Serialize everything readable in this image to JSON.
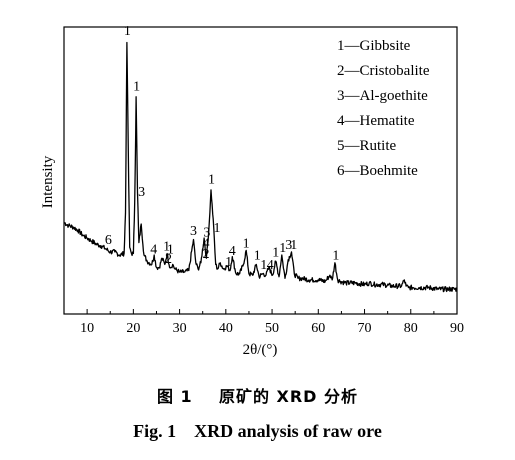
{
  "chart_data": {
    "type": "line",
    "xlabel": "2θ/(°)",
    "ylabel": "Intensity",
    "xlim": [
      5,
      90
    ],
    "x_ticks": [
      10,
      20,
      30,
      40,
      50,
      60,
      70,
      80,
      90
    ],
    "y_ticks_shown": false,
    "grid": false,
    "legend_position": "top-right",
    "legend": [
      {
        "key": "1",
        "label": "1—Gibbsite"
      },
      {
        "key": "2",
        "label": "2—Cristobalite"
      },
      {
        "key": "3",
        "label": "3—Al-goethite"
      },
      {
        "key": "4",
        "label": "4—Hematite"
      },
      {
        "key": "5",
        "label": "5—Rutite"
      },
      {
        "key": "6",
        "label": "6—Boehmite"
      }
    ],
    "series": [
      {
        "x": [
          5.0,
          6.0,
          7.0,
          8.0,
          9.0,
          10.0,
          11.0,
          12.0,
          13.0,
          14.0,
          15.0,
          16.0,
          17.0,
          18.0,
          18.3,
          18.6,
          18.9,
          19.2,
          19.6,
          20.0,
          20.3,
          20.6,
          20.9,
          21.2,
          21.7,
          22.3,
          23.0,
          24.0,
          24.5,
          25.0,
          25.6,
          26.2,
          26.8,
          27.3,
          27.7,
          28.1,
          28.5,
          29.0,
          30.0,
          31.0,
          32.0,
          33.0,
          33.5,
          34.0,
          34.6,
          35.3,
          35.8,
          36.3,
          36.8,
          37.4,
          37.8,
          38.2,
          38.8,
          39.5,
          40.3,
          40.9,
          41.4,
          42.2,
          43.0,
          43.8,
          44.4,
          45.0,
          45.8,
          46.6,
          47.2,
          48.0,
          48.7,
          49.3,
          50.1,
          50.8,
          51.5,
          52.1,
          52.8,
          53.5,
          54.2,
          54.8,
          55.6,
          56.5,
          58.0,
          60.0,
          61.5,
          62.5,
          63.0,
          63.6,
          64.2,
          64.8,
          66.0,
          68.0,
          70.0,
          71.0,
          72.0,
          74.0,
          76.0,
          78.0,
          78.6,
          79.0,
          79.5,
          80.5,
          82.0,
          84.0,
          86.0,
          88.0,
          90.0
        ],
        "y": [
          5.9,
          5.7,
          5.6,
          5.4,
          5.1,
          4.9,
          4.7,
          4.5,
          4.4,
          4.2,
          4.0,
          4.0,
          3.8,
          3.9,
          6.5,
          17.5,
          10.5,
          4.3,
          3.9,
          3.9,
          7.2,
          14.0,
          7.8,
          4.6,
          5.8,
          3.8,
          3.4,
          3.2,
          3.8,
          3.0,
          3.0,
          3.6,
          3.2,
          3.9,
          3.2,
          3.0,
          3.2,
          2.9,
          2.7,
          2.7,
          2.8,
          4.8,
          3.3,
          2.9,
          3.3,
          4.9,
          3.6,
          5.3,
          8.0,
          5.5,
          3.2,
          2.9,
          3.3,
          2.9,
          3.1,
          2.8,
          3.7,
          2.6,
          2.6,
          3.2,
          4.1,
          2.6,
          2.5,
          3.2,
          2.4,
          2.6,
          2.5,
          3.0,
          2.5,
          3.4,
          2.4,
          3.8,
          2.3,
          3.5,
          4.0,
          2.6,
          2.3,
          2.3,
          2.2,
          2.2,
          2.1,
          2.5,
          2.2,
          3.3,
          2.2,
          2.1,
          2.0,
          2.0,
          1.9,
          2.0,
          1.9,
          1.9,
          1.8,
          1.8,
          2.2,
          1.8,
          1.7,
          1.7,
          1.7,
          1.7,
          1.6,
          1.6,
          1.6
        ]
      }
    ],
    "peak_labels": [
      {
        "text": "1",
        "x": 18.7,
        "y": 18.0
      },
      {
        "text": "1",
        "x": 20.7,
        "y": 14.4
      },
      {
        "text": "3",
        "x": 21.8,
        "y": 7.6
      },
      {
        "text": "6",
        "x": 14.6,
        "y": 4.5
      },
      {
        "text": "4",
        "x": 24.4,
        "y": 3.9
      },
      {
        "text": "1",
        "x": 27.2,
        "y": 4.1
      },
      {
        "text": "1",
        "x": 28.0,
        "y": 3.9
      },
      {
        "text": "2",
        "x": 27.6,
        "y": 3.3
      },
      {
        "text": "3",
        "x": 33.0,
        "y": 5.1
      },
      {
        "text": "3",
        "x": 35.9,
        "y": 5.0
      },
      {
        "text": "4",
        "x": 35.7,
        "y": 4.3
      },
      {
        "text": "2",
        "x": 35.7,
        "y": 3.6
      },
      {
        "text": "1",
        "x": 36.9,
        "y": 8.4
      },
      {
        "text": "1",
        "x": 38.1,
        "y": 5.3
      },
      {
        "text": "4",
        "x": 41.4,
        "y": 3.8
      },
      {
        "text": "1",
        "x": 40.6,
        "y": 3.1
      },
      {
        "text": "1",
        "x": 44.4,
        "y": 4.3
      },
      {
        "text": "1",
        "x": 46.8,
        "y": 3.5
      },
      {
        "text": "1",
        "x": 48.2,
        "y": 2.9
      },
      {
        "text": "4",
        "x": 49.6,
        "y": 2.9
      },
      {
        "text": "1",
        "x": 50.8,
        "y": 3.7
      },
      {
        "text": "1",
        "x": 52.3,
        "y": 4.0
      },
      {
        "text": "3",
        "x": 53.6,
        "y": 4.2
      },
      {
        "text": "1",
        "x": 54.7,
        "y": 4.2
      },
      {
        "text": "1",
        "x": 63.8,
        "y": 3.5
      }
    ]
  },
  "caption": {
    "cn_label": "图 1",
    "cn_text": "原矿的 XRD 分析",
    "en_label": "Fig. 1",
    "en_text": "XRD analysis of raw ore"
  }
}
